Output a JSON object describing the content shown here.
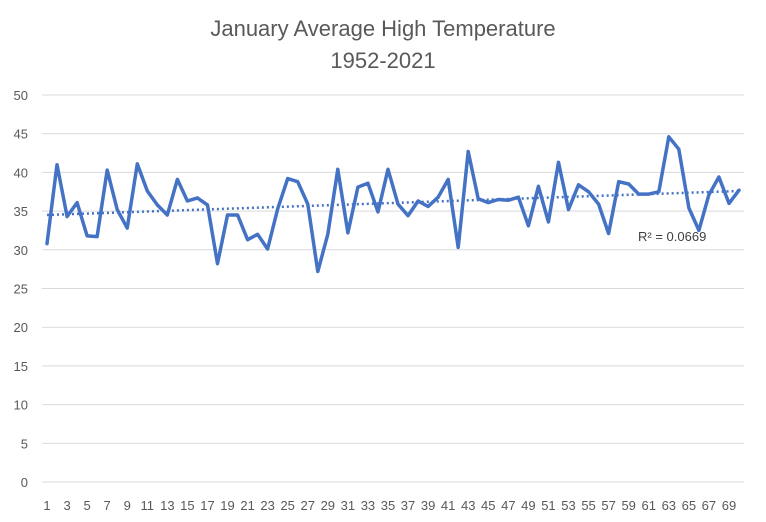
{
  "chart_data": {
    "type": "line",
    "title": "January Average High Temperature",
    "subtitle": "1952-2021",
    "xlabel": "",
    "ylabel": "",
    "ylim": [
      0,
      50
    ],
    "y_ticks": [
      0,
      5,
      10,
      15,
      20,
      25,
      30,
      35,
      40,
      45,
      50
    ],
    "x_tick_labels": [
      1,
      3,
      5,
      7,
      9,
      11,
      13,
      15,
      17,
      19,
      21,
      23,
      25,
      27,
      29,
      31,
      33,
      35,
      37,
      39,
      41,
      43,
      45,
      47,
      49,
      51,
      53,
      55,
      57,
      59,
      61,
      63,
      65,
      67,
      69
    ],
    "grid": true,
    "legend": "none",
    "series": [
      {
        "color": "#4472c4",
        "x": [
          1,
          2,
          3,
          4,
          5,
          6,
          7,
          8,
          9,
          10,
          11,
          12,
          13,
          14,
          15,
          16,
          17,
          18,
          19,
          20,
          21,
          22,
          23,
          24,
          25,
          26,
          27,
          28,
          29,
          30,
          31,
          32,
          33,
          34,
          35,
          36,
          37,
          38,
          39,
          40,
          41,
          42,
          43,
          44,
          45,
          46,
          47,
          48,
          49,
          50,
          51,
          52,
          53,
          54,
          55,
          56,
          57,
          58,
          59,
          60,
          61,
          62,
          63,
          64,
          65,
          66,
          67,
          68,
          69,
          70
        ],
        "values": [
          30.8,
          41.0,
          34.3,
          36.1,
          31.8,
          31.7,
          40.3,
          35.2,
          32.8,
          41.1,
          37.6,
          35.8,
          34.5,
          39.1,
          36.3,
          36.7,
          35.8,
          28.2,
          34.5,
          34.5,
          31.3,
          32.0,
          30.1,
          35.3,
          39.2,
          38.8,
          35.9,
          27.2,
          32.0,
          40.4,
          32.2,
          38.1,
          38.6,
          34.9,
          40.4,
          35.9,
          34.4,
          36.3,
          35.6,
          36.8,
          39.1,
          30.3,
          42.7,
          36.6,
          36.1,
          36.5,
          36.4,
          36.8,
          33.1,
          38.2,
          33.6,
          41.3,
          35.2,
          38.4,
          37.5,
          35.9,
          32.1,
          38.8,
          38.5,
          37.2,
          37.2,
          37.5,
          44.6,
          43.0,
          35.4,
          32.5,
          37.1,
          39.4,
          36.0,
          37.7
        ]
      }
    ],
    "trendline": {
      "type": "linear",
      "color": "#4472c4",
      "style": "dotted",
      "start": [
        1,
        34.5
      ],
      "end": [
        70,
        37.6
      ],
      "label": "R² = 0.0669"
    }
  }
}
